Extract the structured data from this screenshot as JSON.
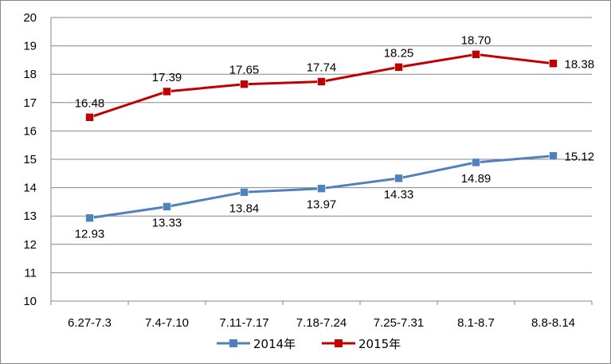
{
  "chart_data": {
    "type": "line",
    "categories": [
      "6.27-7.3",
      "7.4-7.10",
      "7.11-7.17",
      "7.18-7.24",
      "7.25-7.31",
      "8.1-8.7",
      "8.8-8.14"
    ],
    "series": [
      {
        "name": "2014年",
        "color": "#4F81BD",
        "values": [
          12.93,
          13.33,
          13.84,
          13.97,
          14.33,
          14.89,
          15.12
        ],
        "labels": [
          "12.93",
          "13.33",
          "13.84",
          "13.97",
          "14.33",
          "14.89",
          "15.12"
        ],
        "label_position": "below"
      },
      {
        "name": "2015年",
        "color": "#C00000",
        "values": [
          16.48,
          17.39,
          17.65,
          17.74,
          18.25,
          18.7,
          18.38
        ],
        "labels": [
          "16.48",
          "17.39",
          "17.65",
          "17.74",
          "18.25",
          "18.70",
          "18.38"
        ],
        "label_position": "above"
      }
    ],
    "ylim": [
      10,
      20
    ],
    "yticks": [
      "10",
      "11",
      "12",
      "13",
      "14",
      "15",
      "16",
      "17",
      "18",
      "19",
      "20"
    ],
    "grid": true,
    "legend": "bottom",
    "title": "",
    "xlabel": "",
    "ylabel": ""
  }
}
